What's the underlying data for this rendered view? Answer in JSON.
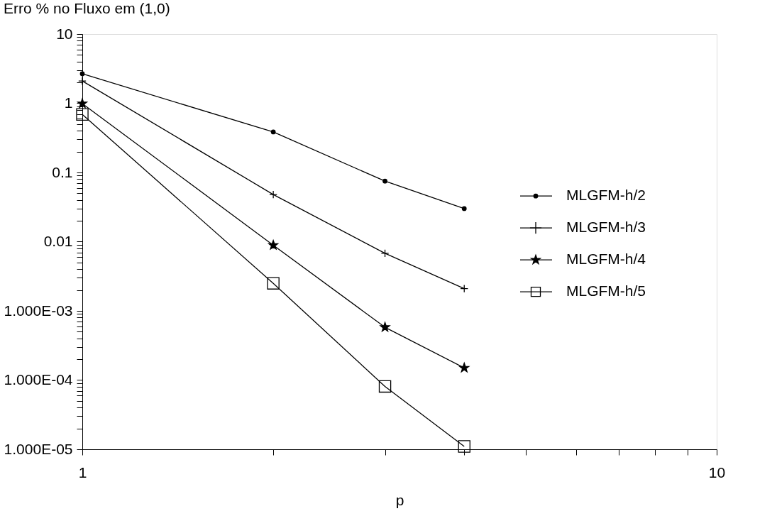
{
  "chart_data": {
    "type": "line",
    "title": "Erro % no Fluxo em (1,0)",
    "xlabel": "p",
    "log": "xy",
    "grid": false,
    "legend": "right",
    "x": [
      1,
      2,
      3,
      4
    ],
    "series": [
      {
        "name": "MLGFM-h/2",
        "color": "#000000",
        "marker": "circle",
        "values": [
          2.67,
          0.385,
          0.075,
          0.03
        ]
      },
      {
        "name": "MLGFM-h/3",
        "color": "#000000",
        "marker": "cross",
        "values": [
          2.1,
          0.048,
          0.0068,
          0.0021
        ]
      },
      {
        "name": "MLGFM-h/4",
        "color": "#000000",
        "marker": "star",
        "values": [
          0.99,
          0.0089,
          0.00058,
          0.00015
        ]
      },
      {
        "name": "MLGFM-h/5",
        "color": "#000000",
        "marker": "square",
        "values": [
          0.69,
          0.0025,
          8.1e-05,
          1.1e-05
        ]
      }
    ],
    "xlim": [
      1,
      10
    ],
    "xticks": [
      1,
      {
        "value": 2,
        "label": null
      },
      {
        "value": 3,
        "label": null
      },
      {
        "value": 4,
        "label": null
      },
      {
        "value": 5,
        "label": null
      },
      {
        "value": 6,
        "label": null
      },
      {
        "value": 7,
        "label": null
      },
      {
        "value": 8,
        "label": null
      },
      {
        "value": 9,
        "label": null
      },
      10
    ],
    "ylim": [
      1e-05,
      10
    ],
    "yticks": [
      {
        "value": 1e-05,
        "label": "1.000E-05"
      },
      {
        "value": 2e-05,
        "label": null
      },
      {
        "value": 3e-05,
        "label": null
      },
      {
        "value": 4e-05,
        "label": null
      },
      {
        "value": 5e-05,
        "label": null
      },
      {
        "value": 6e-05,
        "label": null
      },
      {
        "value": 7e-05,
        "label": null
      },
      {
        "value": 8e-05,
        "label": null
      },
      {
        "value": 9e-05,
        "label": null
      },
      {
        "value": 0.0001,
        "label": "1.000E-04"
      },
      {
        "value": 0.0002,
        "label": null
      },
      {
        "value": 0.0003,
        "label": null
      },
      {
        "value": 0.0004,
        "label": null
      },
      {
        "value": 0.0005,
        "label": null
      },
      {
        "value": 0.0006,
        "label": null
      },
      {
        "value": 0.0007,
        "label": null
      },
      {
        "value": 0.0008,
        "label": null
      },
      {
        "value": 0.0009,
        "label": null
      },
      {
        "value": 0.001,
        "label": "1.000E-03"
      },
      {
        "value": 0.002,
        "label": null
      },
      {
        "value": 0.003,
        "label": null
      },
      {
        "value": 0.004,
        "label": null
      },
      {
        "value": 0.005,
        "label": null
      },
      {
        "value": 0.006,
        "label": null
      },
      {
        "value": 0.007,
        "label": null
      },
      {
        "value": 0.008,
        "label": null
      },
      {
        "value": 0.009,
        "label": null
      },
      0.01,
      {
        "value": 0.02,
        "label": null
      },
      {
        "value": 0.03,
        "label": null
      },
      {
        "value": 0.04,
        "label": null
      },
      {
        "value": 0.05,
        "label": null
      },
      {
        "value": 0.06,
        "label": null
      },
      {
        "value": 0.07,
        "label": null
      },
      {
        "value": 0.08,
        "label": null
      },
      {
        "value": 0.09,
        "label": null
      },
      0.1,
      {
        "value": 0.2,
        "label": null
      },
      {
        "value": 0.3,
        "label": null
      },
      {
        "value": 0.4,
        "label": null
      },
      {
        "value": 0.5,
        "label": null
      },
      {
        "value": 0.6,
        "label": null
      },
      {
        "value": 0.7,
        "label": null
      },
      {
        "value": 0.8,
        "label": null
      },
      {
        "value": 0.9,
        "label": null
      },
      1,
      {
        "value": 2,
        "label": null
      },
      {
        "value": 3,
        "label": null
      },
      {
        "value": 4,
        "label": null
      },
      {
        "value": 5,
        "label": null
      },
      {
        "value": 6,
        "label": null
      },
      {
        "value": 7,
        "label": null
      },
      {
        "value": 8,
        "label": null
      },
      {
        "value": 9,
        "label": null
      },
      10
    ]
  }
}
